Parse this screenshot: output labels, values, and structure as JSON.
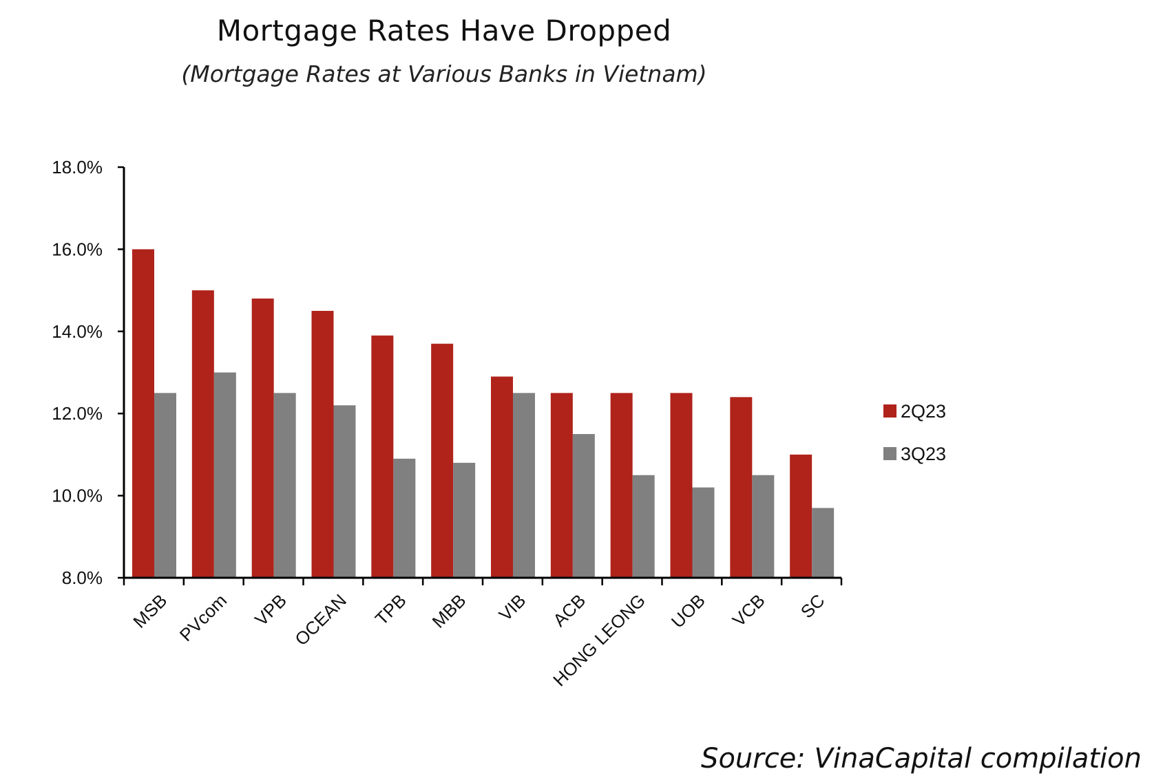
{
  "chart_data": {
    "type": "bar",
    "title": "Mortgage Rates Have Dropped",
    "subtitle": "(Mortgage Rates at Various Banks in Vietnam)",
    "categories": [
      "MSB",
      "PVcom",
      "VPB",
      "OCEAN",
      "TPB",
      "MBB",
      "VIB",
      "ACB",
      "HONG LEONG",
      "UOB",
      "VCB",
      "SC"
    ],
    "series": [
      {
        "name": "2Q23",
        "color": "#B0231B",
        "values": [
          16.0,
          15.0,
          14.8,
          14.5,
          13.9,
          13.7,
          12.9,
          12.5,
          12.5,
          12.5,
          12.4,
          11.0
        ]
      },
      {
        "name": "3Q23",
        "color": "#808080",
        "values": [
          12.5,
          13.0,
          12.5,
          12.2,
          10.9,
          10.8,
          12.5,
          11.5,
          10.5,
          10.2,
          10.5,
          9.7
        ]
      }
    ],
    "ylim": [
      8.0,
      18.0
    ],
    "yticks": [
      "8.0%",
      "10.0%",
      "12.0%",
      "14.0%",
      "16.0%",
      "18.0%"
    ],
    "xlabel": "",
    "ylabel": "",
    "grid": false,
    "legend_position": "right"
  },
  "source": "Source: VinaCapital compilation"
}
